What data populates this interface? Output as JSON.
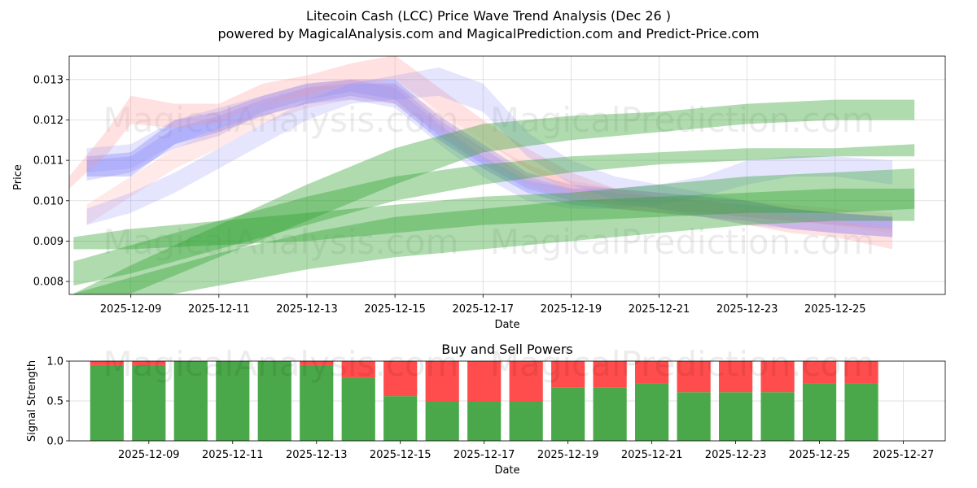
{
  "title_line1": "Litecoin Cash (LCC) Price Wave Trend Analysis (Dec 26 )",
  "title_line2": "powered by MagicalAnalysis.com and MagicalPrediction.com and Predict-Price.com",
  "watermarks": [
    "MagicalAnalysis.com",
    "MagicalPrediction.com"
  ],
  "colors": {
    "purple": "#6e6ef7",
    "red": "#ff9a9a",
    "blue": "#8a8af9",
    "green": "#2ca02c",
    "buy": "#4aa84a",
    "sell": "#ff4c4c"
  },
  "chart_data": [
    {
      "type": "area",
      "title": "",
      "xlabel": "Date",
      "ylabel": "Price",
      "ylim": [
        0.00768,
        0.01358
      ],
      "x_range_days": [
        7.6,
        27.5
      ],
      "grid": true,
      "x_ticks": [
        {
          "day": 9,
          "label": "2025-12-09"
        },
        {
          "day": 11,
          "label": "2025-12-11"
        },
        {
          "day": 13,
          "label": "2025-12-13"
        },
        {
          "day": 15,
          "label": "2025-12-15"
        },
        {
          "day": 17,
          "label": "2025-12-17"
        },
        {
          "day": 19,
          "label": "2025-12-19"
        },
        {
          "day": 21,
          "label": "2025-12-21"
        },
        {
          "day": 23,
          "label": "2025-12-23"
        },
        {
          "day": 25,
          "label": "2025-12-25"
        }
      ],
      "y_ticks": [
        {
          "value": 0.008,
          "label": "0.008"
        },
        {
          "value": 0.009,
          "label": "0.009"
        },
        {
          "value": 0.01,
          "label": "0.010"
        },
        {
          "value": 0.011,
          "label": "0.011"
        },
        {
          "value": 0.012,
          "label": "0.012"
        },
        {
          "value": 0.013,
          "label": "0.013"
        }
      ],
      "series": [
        {
          "name": "purple-band-1",
          "color": "purple",
          "opacity": 0.3,
          "x": [
            8,
            9,
            10,
            11,
            12,
            13,
            14,
            15,
            16,
            17,
            18,
            19,
            20,
            21,
            22,
            23,
            24,
            25,
            26.3
          ],
          "lower": [
            0.0106,
            0.0106,
            0.0114,
            0.0117,
            0.0121,
            0.0124,
            0.0126,
            0.0124,
            0.0115,
            0.0108,
            0.0102,
            0.0099,
            0.0098,
            0.0097,
            0.0096,
            0.0095,
            0.0093,
            0.0092,
            0.0091
          ],
          "upper": [
            0.0111,
            0.0112,
            0.012,
            0.0122,
            0.0126,
            0.0129,
            0.013,
            0.013,
            0.0121,
            0.0114,
            0.0107,
            0.0104,
            0.0103,
            0.0102,
            0.0101,
            0.01,
            0.0098,
            0.0097,
            0.0096
          ]
        },
        {
          "name": "purple-band-2",
          "color": "purple",
          "opacity": 0.22,
          "x": [
            8,
            9,
            10,
            11,
            12,
            13,
            14,
            15,
            16,
            17,
            18,
            19,
            20,
            21,
            22,
            23,
            24,
            25,
            26.3
          ],
          "lower": [
            0.0105,
            0.0107,
            0.0113,
            0.0116,
            0.0122,
            0.0125,
            0.0127,
            0.0125,
            0.0116,
            0.0109,
            0.0103,
            0.01,
            0.0099,
            0.0098,
            0.0097,
            0.0096,
            0.0095,
            0.0094,
            0.0093
          ],
          "upper": [
            0.011,
            0.0111,
            0.0118,
            0.0121,
            0.0125,
            0.0128,
            0.0129,
            0.0129,
            0.012,
            0.0113,
            0.0106,
            0.0103,
            0.0102,
            0.0101,
            0.01,
            0.0099,
            0.0098,
            0.0097,
            0.0096
          ]
        },
        {
          "name": "red-band-1",
          "color": "red",
          "opacity": 0.3,
          "x": [
            7.6,
            8.5,
            9,
            10,
            11,
            12,
            13,
            14,
            15,
            16,
            17,
            18,
            19,
            20,
            21,
            22,
            23,
            24,
            25,
            26.3
          ],
          "lower": [
            0.0103,
            0.0112,
            0.0119,
            0.0118,
            0.0119,
            0.0124,
            0.0126,
            0.0129,
            0.013,
            0.0122,
            0.0115,
            0.0108,
            0.0102,
            0.0098,
            0.0097,
            0.0096,
            0.0094,
            0.0092,
            0.0091,
            0.0088
          ],
          "upper": [
            0.0106,
            0.0118,
            0.0126,
            0.0124,
            0.0124,
            0.0129,
            0.0131,
            0.0134,
            0.0136,
            0.0128,
            0.012,
            0.0113,
            0.0107,
            0.0103,
            0.0101,
            0.01,
            0.0098,
            0.0096,
            0.0095,
            0.0093
          ]
        },
        {
          "name": "red-band-2",
          "color": "red",
          "opacity": 0.22,
          "x": [
            8,
            9,
            10,
            11,
            12,
            13,
            14,
            15,
            16,
            17,
            18,
            19,
            20,
            21,
            22,
            23,
            24,
            25,
            26.3
          ],
          "lower": [
            0.0094,
            0.0101,
            0.0108,
            0.0113,
            0.0119,
            0.0123,
            0.0125,
            0.0124,
            0.0117,
            0.011,
            0.0104,
            0.01,
            0.0099,
            0.0098,
            0.0097,
            0.0096,
            0.0095,
            0.0094,
            0.0092
          ],
          "upper": [
            0.0099,
            0.0106,
            0.0113,
            0.0118,
            0.0124,
            0.0128,
            0.013,
            0.0129,
            0.0122,
            0.0115,
            0.0109,
            0.0105,
            0.0103,
            0.0102,
            0.0101,
            0.01,
            0.0099,
            0.0098,
            0.0097
          ]
        },
        {
          "name": "blue-band-1",
          "color": "blue",
          "opacity": 0.22,
          "x": [
            8,
            9,
            10,
            11,
            12,
            13,
            14,
            15,
            16,
            17,
            18,
            19,
            20,
            21,
            22,
            23,
            24,
            25,
            26.3
          ],
          "lower": [
            0.0094,
            0.0097,
            0.0102,
            0.0108,
            0.0114,
            0.012,
            0.0124,
            0.0125,
            0.0126,
            0.0122,
            0.0111,
            0.0104,
            0.01,
            0.0098,
            0.0096,
            0.0094,
            0.0093,
            0.0092,
            0.0091
          ],
          "upper": [
            0.0098,
            0.0102,
            0.0107,
            0.0113,
            0.0119,
            0.0125,
            0.0129,
            0.0131,
            0.0133,
            0.0129,
            0.0117,
            0.011,
            0.0106,
            0.0104,
            0.0102,
            0.01,
            0.0098,
            0.0097,
            0.0096
          ]
        },
        {
          "name": "blue-band-2",
          "color": "blue",
          "opacity": 0.22,
          "x": [
            8,
            9,
            10,
            11,
            12,
            13,
            14,
            15,
            16,
            17,
            18,
            19,
            20,
            21,
            22,
            23,
            24,
            25,
            26.3
          ],
          "lower": [
            0.0107,
            0.0108,
            0.0114,
            0.0118,
            0.0121,
            0.0124,
            0.0125,
            0.0123,
            0.0114,
            0.0106,
            0.01,
            0.0098,
            0.0098,
            0.0099,
            0.0101,
            0.0104,
            0.0106,
            0.0106,
            0.0104
          ],
          "upper": [
            0.0113,
            0.0114,
            0.012,
            0.0123,
            0.0126,
            0.0129,
            0.013,
            0.0128,
            0.0119,
            0.0111,
            0.0105,
            0.0103,
            0.0103,
            0.0104,
            0.0106,
            0.011,
            0.0111,
            0.0111,
            0.011
          ]
        },
        {
          "name": "green-band-1",
          "color": "green",
          "opacity": 0.38,
          "x": [
            7.7,
            9,
            11,
            13,
            15,
            17,
            19,
            21,
            23,
            25,
            26.8
          ],
          "lower": [
            0.0079,
            0.0082,
            0.0088,
            0.0094,
            0.01,
            0.0104,
            0.0107,
            0.0109,
            0.011,
            0.0111,
            0.0111
          ],
          "upper": [
            0.0085,
            0.0089,
            0.0095,
            0.0101,
            0.0106,
            0.0109,
            0.0111,
            0.0112,
            0.0113,
            0.0113,
            0.0114
          ]
        },
        {
          "name": "green-band-2",
          "color": "green",
          "opacity": 0.38,
          "x": [
            7.7,
            9,
            11,
            13,
            15,
            17,
            19,
            21,
            23,
            25,
            26.8
          ],
          "lower": [
            0.0088,
            0.0088,
            0.0089,
            0.009,
            0.0092,
            0.0094,
            0.0095,
            0.0096,
            0.0097,
            0.0097,
            0.0098
          ],
          "upper": [
            0.0091,
            0.0093,
            0.0095,
            0.0097,
            0.0099,
            0.0101,
            0.0102,
            0.0104,
            0.0106,
            0.0107,
            0.0108
          ]
        },
        {
          "name": "green-band-3",
          "color": "green",
          "opacity": 0.38,
          "x": [
            7.7,
            9,
            11,
            13,
            15,
            17,
            19,
            21,
            23,
            25,
            26.8
          ],
          "lower": [
            0.0073,
            0.0077,
            0.0086,
            0.0095,
            0.0104,
            0.0112,
            0.0115,
            0.0117,
            0.0119,
            0.012,
            0.012
          ],
          "upper": [
            0.0077,
            0.0084,
            0.0094,
            0.0104,
            0.0113,
            0.0119,
            0.0121,
            0.0122,
            0.0124,
            0.0125,
            0.0125
          ]
        },
        {
          "name": "green-band-4",
          "color": "green",
          "opacity": 0.38,
          "x": [
            7.7,
            9,
            11,
            13,
            15,
            17,
            19,
            21,
            23,
            25,
            26.8
          ],
          "lower": [
            0.0074,
            0.0075,
            0.0079,
            0.0083,
            0.0086,
            0.0088,
            0.009,
            0.0092,
            0.0094,
            0.0095,
            0.0095
          ],
          "upper": [
            0.0077,
            0.0081,
            0.0087,
            0.0092,
            0.0096,
            0.0098,
            0.01,
            0.0101,
            0.0102,
            0.0103,
            0.0103
          ]
        }
      ]
    },
    {
      "type": "bar",
      "title": "Buy and Sell Powers",
      "xlabel": "Date",
      "ylabel": "Signal Strength",
      "ylim": [
        0,
        1
      ],
      "x_range_days": [
        7.1,
        28.0
      ],
      "grid": true,
      "x_ticks": [
        {
          "day": 9,
          "label": "2025-12-09"
        },
        {
          "day": 11,
          "label": "2025-12-11"
        },
        {
          "day": 13,
          "label": "2025-12-13"
        },
        {
          "day": 15,
          "label": "2025-12-15"
        },
        {
          "day": 17,
          "label": "2025-12-17"
        },
        {
          "day": 19,
          "label": "2025-12-19"
        },
        {
          "day": 21,
          "label": "2025-12-21"
        },
        {
          "day": 23,
          "label": "2025-12-23"
        },
        {
          "day": 25,
          "label": "2025-12-25"
        },
        {
          "day": 27,
          "label": "2025-12-27"
        }
      ],
      "y_ticks": [
        {
          "value": 0.0,
          "label": "0.0"
        },
        {
          "value": 0.5,
          "label": "0.5"
        },
        {
          "value": 1.0,
          "label": "1.0"
        }
      ],
      "days": [
        8,
        9,
        10,
        11,
        12,
        13,
        14,
        15,
        16,
        17,
        18,
        19,
        20,
        21,
        22,
        23,
        24,
        25,
        26
      ],
      "series": [
        {
          "name": "Buy",
          "color": "buy",
          "values": [
            0.95,
            0.95,
            1.0,
            1.0,
            1.0,
            0.95,
            0.79,
            0.56,
            0.5,
            0.5,
            0.5,
            0.67,
            0.67,
            0.72,
            0.61,
            0.61,
            0.61,
            0.72,
            0.72
          ]
        },
        {
          "name": "Sell",
          "color": "sell",
          "values": [
            0.05,
            0.05,
            0.0,
            0.0,
            0.0,
            0.05,
            0.21,
            0.44,
            0.5,
            0.5,
            0.5,
            0.33,
            0.33,
            0.28,
            0.39,
            0.39,
            0.39,
            0.28,
            0.28
          ]
        }
      ]
    }
  ]
}
